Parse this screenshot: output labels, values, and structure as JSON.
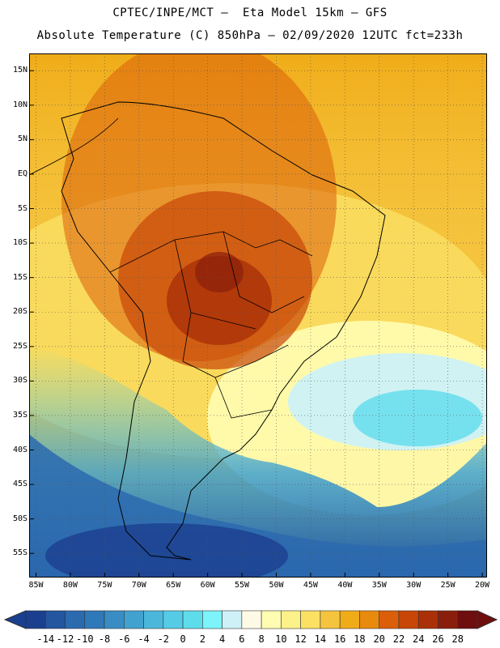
{
  "title": {
    "line1": "CPTEC/INPE/MCT –  Eta Model 15km – GFS",
    "line2": "Absolute Temperature (C) 850hPa – 02/09/2020 12UTC fct=233h"
  },
  "axes": {
    "lat_labels": [
      "15N",
      "10N",
      "5N",
      "EQ",
      "5S",
      "10S",
      "15S",
      "20S",
      "25S",
      "30S",
      "35S",
      "40S",
      "45S",
      "50S",
      "55S"
    ],
    "lon_labels": [
      "85W",
      "80W",
      "75W",
      "70W",
      "65W",
      "60W",
      "55W",
      "50W",
      "45W",
      "40W",
      "35W",
      "30W",
      "25W",
      "20W"
    ],
    "lat_range": [
      17.5,
      -58.5
    ],
    "lon_range": [
      -86,
      -19.3
    ]
  },
  "colorbar": {
    "levels": [
      -14,
      -12,
      -10,
      -8,
      -6,
      -4,
      -2,
      0,
      2,
      4,
      6,
      8,
      10,
      12,
      14,
      16,
      18,
      20,
      22,
      24,
      26,
      28
    ],
    "labels": [
      "-14",
      "-12",
      "-10",
      "-8",
      "-6",
      "-4",
      "-2",
      "0",
      "2",
      "4",
      "6",
      "8",
      "10",
      "12",
      "14",
      "16",
      "18",
      "20",
      "22",
      "24",
      "26",
      "28"
    ],
    "colors": [
      "#1b3f8f",
      "#23569f",
      "#2c6aaf",
      "#3079b8",
      "#3a8dc4",
      "#42a2cf",
      "#4bb8db",
      "#55cbe6",
      "#5fdcec",
      "#7cf4fa",
      "#cdf1f7",
      "#fffae6",
      "#fffdb2",
      "#fdf18a",
      "#fbe064",
      "#f5c43e",
      "#f0ac18",
      "#e88a0e",
      "#db5e0a",
      "#c84608",
      "#aa3008",
      "#8a1e0c",
      "#6e0e0e"
    ]
  }
}
